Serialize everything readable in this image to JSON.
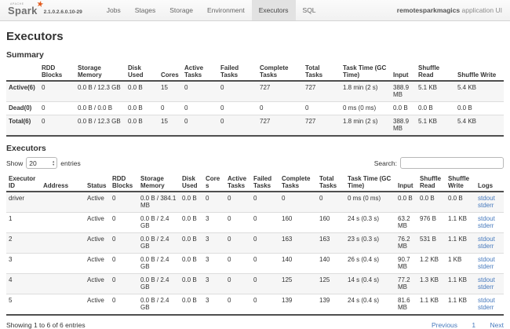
{
  "colors": {
    "brand_orange": "#e25a1c",
    "link_blue": "#4679bd",
    "active_tab_bg": "#e2e2e2"
  },
  "icons": {
    "star": "★",
    "select_up": "▴",
    "select_down": "▾"
  },
  "navbar": {
    "logo_apache": "APACHE",
    "logo_text": "Spark",
    "version": "2.1.0.2.6.0.10-29",
    "tabs": [
      "Jobs",
      "Stages",
      "Storage",
      "Environment",
      "Executors",
      "SQL"
    ],
    "active_tab": "Executors",
    "app_name": "remotesparkmagics",
    "app_suffix": " application UI"
  },
  "page": {
    "title": "Executors"
  },
  "summary": {
    "heading": "Summary",
    "columns": [
      "",
      "RDD Blocks",
      "Storage Memory",
      "Disk Used",
      "Cores",
      "Active Tasks",
      "Failed Tasks",
      "Complete Tasks",
      "Total Tasks",
      "Task Time (GC Time)",
      "Input",
      "Shuffle Read",
      "Shuffle Write"
    ],
    "rows": [
      {
        "cells": [
          "Active(6)",
          "0",
          "0.0 B / 12.3 GB",
          "0.0 B",
          "15",
          "0",
          "0",
          "727",
          "727",
          "1.8 min (2 s)",
          "388.9 MB",
          "5.1 KB",
          "5.4 KB"
        ]
      },
      {
        "cells": [
          "Dead(0)",
          "0",
          "0.0 B / 0.0 B",
          "0.0 B",
          "0",
          "0",
          "0",
          "0",
          "0",
          "0 ms (0 ms)",
          "0.0 B",
          "0.0 B",
          "0.0 B"
        ]
      },
      {
        "cells": [
          "Total(6)",
          "0",
          "0.0 B / 12.3 GB",
          "0.0 B",
          "15",
          "0",
          "0",
          "727",
          "727",
          "1.8 min (2 s)",
          "388.9 MB",
          "5.1 KB",
          "5.4 KB"
        ]
      }
    ]
  },
  "executors": {
    "heading": "Executors",
    "controls": {
      "show_label": "Show",
      "show_value": "20",
      "entries_label": "entries",
      "search_label": "Search:",
      "search_value": ""
    },
    "columns": [
      "Executor ID",
      "Address",
      "Status",
      "RDD Blocks",
      "Storage Memory",
      "Disk Used",
      "Cores",
      "Active Tasks",
      "Failed Tasks",
      "Complete Tasks",
      "Total Tasks",
      "Task Time (GC Time)",
      "Input",
      "Shuffle Read",
      "Shuffle Write",
      "Logs"
    ],
    "rows": [
      {
        "cells": [
          "driver",
          "",
          "Active",
          "0",
          "0.0 B / 384.1 MB",
          "0.0 B",
          "0",
          "0",
          "0",
          "0",
          "0",
          "0 ms (0 ms)",
          "0.0 B",
          "0.0 B",
          "0.0 B"
        ],
        "logs": [
          "stdout",
          "stderr"
        ]
      },
      {
        "cells": [
          "1",
          "",
          "Active",
          "0",
          "0.0 B / 2.4 GB",
          "0.0 B",
          "3",
          "0",
          "0",
          "160",
          "160",
          "24 s (0.3 s)",
          "63.2 MB",
          "976 B",
          "1.1 KB"
        ],
        "logs": [
          "stdout",
          "stderr"
        ]
      },
      {
        "cells": [
          "2",
          "",
          "Active",
          "0",
          "0.0 B / 2.4 GB",
          "0.0 B",
          "3",
          "0",
          "0",
          "163",
          "163",
          "23 s (0.3 s)",
          "76.2 MB",
          "531 B",
          "1.1 KB"
        ],
        "logs": [
          "stdout",
          "stderr"
        ]
      },
      {
        "cells": [
          "3",
          "",
          "Active",
          "0",
          "0.0 B / 2.4 GB",
          "0.0 B",
          "3",
          "0",
          "0",
          "140",
          "140",
          "26 s (0.4 s)",
          "90.7 MB",
          "1.2 KB",
          "1 KB"
        ],
        "logs": [
          "stdout",
          "stderr"
        ]
      },
      {
        "cells": [
          "4",
          "",
          "Active",
          "0",
          "0.0 B / 2.4 GB",
          "0.0 B",
          "3",
          "0",
          "0",
          "125",
          "125",
          "14 s (0.4 s)",
          "77.2 MB",
          "1.3 KB",
          "1.1 KB"
        ],
        "logs": [
          "stdout",
          "stderr"
        ]
      },
      {
        "cells": [
          "5",
          "",
          "Active",
          "0",
          "0.0 B / 2.4 GB",
          "0.0 B",
          "3",
          "0",
          "0",
          "139",
          "139",
          "24 s (0.4 s)",
          "81.6 MB",
          "1.1 KB",
          "1.1 KB"
        ],
        "logs": [
          "stdout",
          "stderr"
        ]
      }
    ]
  },
  "footer": {
    "showing": "Showing 1 to 6 of 6 entries",
    "previous_label": "Previous",
    "current_page": "1",
    "next_label": "Next"
  }
}
